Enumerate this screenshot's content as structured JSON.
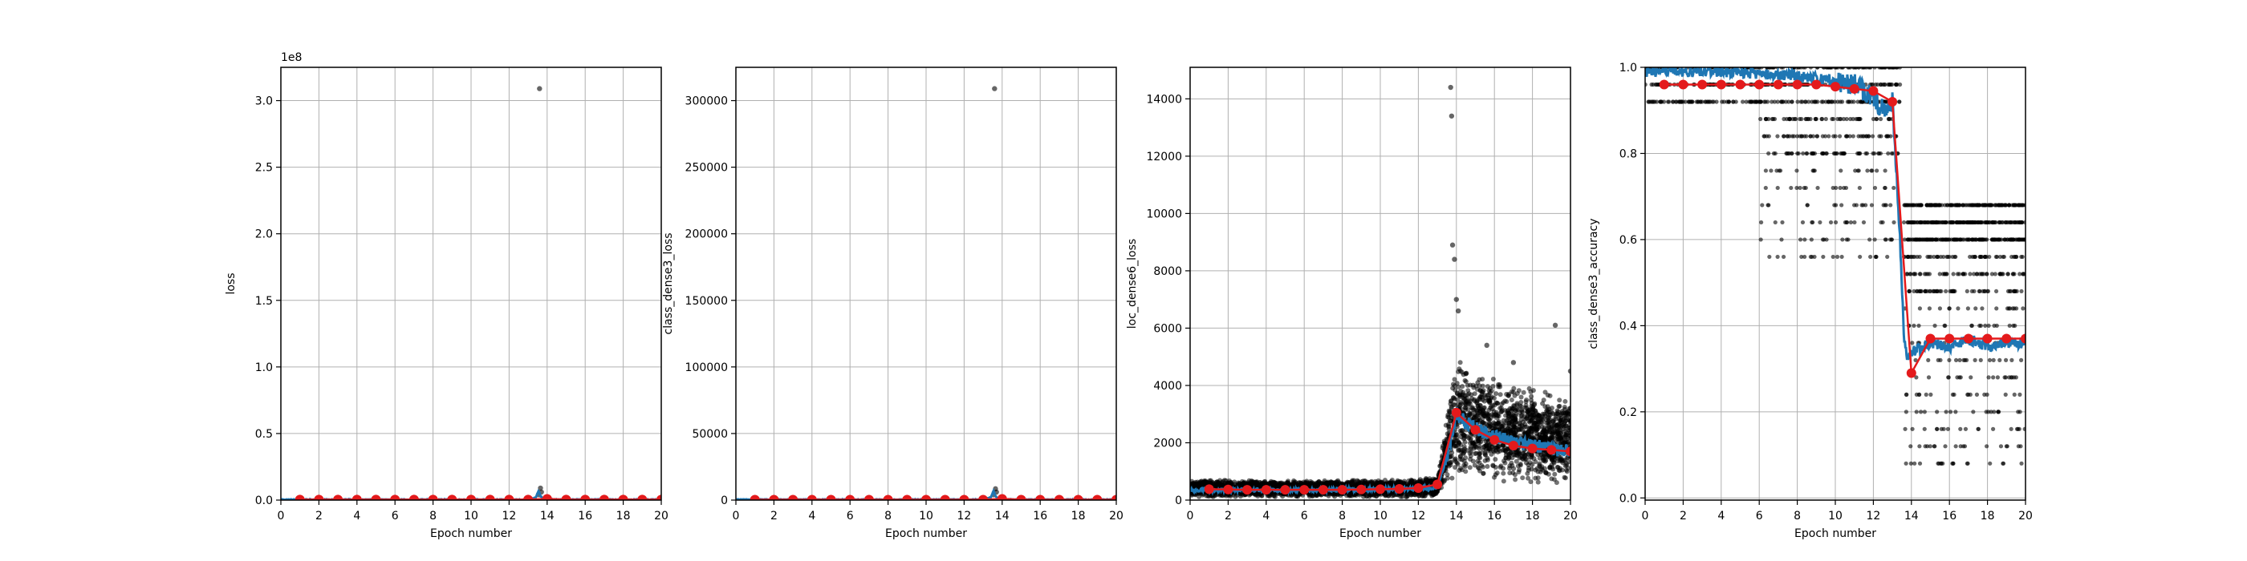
{
  "figure": {
    "background": "#ffffff",
    "colors": {
      "raw_points": "#000000",
      "smoothed_line": "#1f77b4",
      "epoch_mean": "#e41a1c",
      "grid": "#b0b0b0"
    }
  },
  "chart_data": [
    {
      "type": "scatter",
      "title": "",
      "xlabel": "Epoch number",
      "ylabel": "loss",
      "xlim": [
        0,
        20
      ],
      "ylim": [
        0,
        325000000
      ],
      "xticks": [
        0,
        2,
        4,
        6,
        8,
        10,
        12,
        14,
        16,
        18,
        20
      ],
      "yticks": [
        0,
        50000000,
        100000000,
        150000000,
        200000000,
        250000000,
        300000000
      ],
      "ytick_labels": [
        "0.0",
        "0.5",
        "1.0",
        "1.5",
        "2.0",
        "2.5",
        "3.0"
      ],
      "offset_label": "1e8",
      "grid": true,
      "series": [
        {
          "role": "raw",
          "x": [
            13.6,
            13.65,
            13.7,
            13.55
          ],
          "y": [
            309000000,
            9000000,
            6000000,
            4000000
          ]
        },
        {
          "role": "smoothed",
          "x": [
            0,
            2,
            4,
            6,
            8,
            10,
            12,
            13.0,
            13.4,
            13.55,
            13.65,
            13.8,
            14.0,
            16,
            18,
            20
          ],
          "y": [
            400000,
            400000,
            400000,
            400000,
            400000,
            400000,
            400000,
            400000,
            2000000,
            7000000,
            3000000,
            900000,
            500000,
            400000,
            400000,
            400000
          ]
        },
        {
          "role": "epoch_mean",
          "x": [
            1,
            2,
            3,
            4,
            5,
            6,
            7,
            8,
            9,
            10,
            11,
            12,
            13,
            14,
            15,
            16,
            17,
            18,
            19,
            20
          ],
          "y": [
            400000,
            400000,
            400000,
            400000,
            400000,
            400000,
            400000,
            400000,
            400000,
            400000,
            400000,
            400000,
            400000,
            900000,
            400000,
            400000,
            400000,
            400000,
            400000,
            400000
          ]
        }
      ]
    },
    {
      "type": "scatter",
      "title": "",
      "xlabel": "Epoch number",
      "ylabel": "class_dense3_loss",
      "xlim": [
        0,
        20
      ],
      "ylim": [
        0,
        325000
      ],
      "xticks": [
        0,
        2,
        4,
        6,
        8,
        10,
        12,
        14,
        16,
        18,
        20
      ],
      "yticks": [
        0,
        50000,
        100000,
        150000,
        200000,
        250000,
        300000
      ],
      "ytick_labels": [
        "0",
        "50000",
        "100000",
        "150000",
        "200000",
        "250000",
        "300000"
      ],
      "grid": true,
      "series": [
        {
          "role": "raw",
          "x": [
            13.6,
            13.65,
            13.7,
            13.55
          ],
          "y": [
            309000,
            8500,
            6000,
            4000
          ]
        },
        {
          "role": "smoothed",
          "x": [
            0,
            2,
            4,
            6,
            8,
            10,
            12,
            13.0,
            13.4,
            13.55,
            13.65,
            13.8,
            14.0,
            16,
            18,
            20
          ],
          "y": [
            400,
            400,
            400,
            400,
            400,
            400,
            400,
            400,
            2000,
            7000,
            3000,
            900,
            500,
            400,
            400,
            400
          ]
        },
        {
          "role": "epoch_mean",
          "x": [
            1,
            2,
            3,
            4,
            5,
            6,
            7,
            8,
            9,
            10,
            11,
            12,
            13,
            14,
            15,
            16,
            17,
            18,
            19,
            20
          ],
          "y": [
            300,
            300,
            300,
            300,
            300,
            300,
            300,
            300,
            300,
            300,
            300,
            300,
            300,
            900,
            300,
            300,
            300,
            300,
            300,
            300
          ]
        }
      ]
    },
    {
      "type": "scatter",
      "title": "",
      "xlabel": "Epoch number",
      "ylabel": "loc_dense6_loss",
      "xlim": [
        0,
        20
      ],
      "ylim": [
        0,
        15100
      ],
      "xticks": [
        0,
        2,
        4,
        6,
        8,
        10,
        12,
        14,
        16,
        18,
        20
      ],
      "yticks": [
        0,
        2000,
        4000,
        6000,
        8000,
        10000,
        12000,
        14000
      ],
      "ytick_labels": [
        "0",
        "2000",
        "4000",
        "6000",
        "8000",
        "10000",
        "12000",
        "14000"
      ],
      "grid": true,
      "series": [
        {
          "role": "raw_band",
          "x": [
            0,
            2,
            4,
            6,
            8,
            10,
            12,
            13.0,
            13.5,
            14.0,
            15,
            16,
            17,
            18,
            19,
            20
          ],
          "low": [
            100,
            100,
            100,
            100,
            100,
            100,
            100,
            150,
            500,
            800,
            700,
            600,
            550,
            500,
            500,
            500
          ],
          "high": [
            700,
            700,
            700,
            700,
            700,
            700,
            750,
            800,
            3000,
            5000,
            4600,
            4300,
            4100,
            4000,
            3900,
            3800
          ]
        },
        {
          "role": "raw_outliers",
          "x": [
            13.7,
            13.75,
            13.8,
            13.9,
            14.0,
            14.1,
            15.6,
            17.0,
            19.2,
            20.0
          ],
          "y": [
            14400,
            13400,
            8900,
            8400,
            7000,
            6600,
            5400,
            4800,
            6100,
            4500
          ]
        },
        {
          "role": "smoothed",
          "x": [
            0,
            2,
            4,
            6,
            8,
            10,
            12,
            13.0,
            13.5,
            14.0,
            14.5,
            15,
            16,
            17,
            18,
            19,
            20
          ],
          "y": [
            350,
            350,
            350,
            350,
            360,
            380,
            400,
            450,
            1500,
            3000,
            2700,
            2500,
            2200,
            2000,
            1900,
            1800,
            1700
          ]
        },
        {
          "role": "epoch_mean",
          "x": [
            1,
            2,
            3,
            4,
            5,
            6,
            7,
            8,
            9,
            10,
            11,
            12,
            13,
            14,
            15,
            16,
            17,
            18,
            19,
            20
          ],
          "y": [
            380,
            370,
            360,
            360,
            360,
            360,
            360,
            360,
            370,
            380,
            390,
            420,
            550,
            3050,
            2450,
            2100,
            1900,
            1800,
            1750,
            1700
          ]
        }
      ]
    },
    {
      "type": "scatter",
      "title": "",
      "xlabel": "Epoch number",
      "ylabel": "class_dense3_accuracy",
      "xlim": [
        0,
        20
      ],
      "ylim": [
        -0.005,
        1.0
      ],
      "xticks": [
        0,
        2,
        4,
        6,
        8,
        10,
        12,
        14,
        16,
        18,
        20
      ],
      "yticks": [
        0.0,
        0.2,
        0.4,
        0.6,
        0.8,
        1.0
      ],
      "ytick_labels": [
        "0.0",
        "0.2",
        "0.4",
        "0.6",
        "0.8",
        "1.0"
      ],
      "grid": true,
      "series": [
        {
          "role": "raw_levels_before",
          "x_range": [
            0,
            13.4
          ],
          "levels": [
            1.0,
            0.96,
            0.92,
            0.88,
            0.84,
            0.8,
            0.76,
            0.72,
            0.68,
            0.64,
            0.6,
            0.56
          ]
        },
        {
          "role": "raw_levels_after",
          "x_range": [
            13.6,
            20
          ],
          "levels": [
            0.68,
            0.64,
            0.6,
            0.56,
            0.52,
            0.48,
            0.44,
            0.4,
            0.36,
            0.32,
            0.28,
            0.24,
            0.2,
            0.16,
            0.12,
            0.08
          ]
        },
        {
          "role": "smoothed",
          "x": [
            0,
            2,
            4,
            6,
            8,
            9,
            10,
            11,
            12,
            12.5,
            13.0,
            13.4,
            13.6,
            13.8,
            14.0,
            15,
            16,
            17,
            18,
            19,
            20
          ],
          "y": [
            0.99,
            0.99,
            0.99,
            0.985,
            0.98,
            0.975,
            0.97,
            0.96,
            0.93,
            0.9,
            0.92,
            0.6,
            0.38,
            0.32,
            0.34,
            0.36,
            0.35,
            0.37,
            0.35,
            0.36,
            0.36
          ]
        },
        {
          "role": "epoch_mean",
          "x": [
            1,
            2,
            3,
            4,
            5,
            6,
            7,
            8,
            9,
            10,
            11,
            12,
            13,
            14,
            15,
            16,
            17,
            18,
            19,
            20
          ],
          "y": [
            0.96,
            0.96,
            0.96,
            0.96,
            0.96,
            0.96,
            0.96,
            0.96,
            0.96,
            0.955,
            0.95,
            0.945,
            0.92,
            0.29,
            0.37,
            0.37,
            0.37,
            0.37,
            0.37,
            0.37
          ]
        }
      ]
    }
  ]
}
